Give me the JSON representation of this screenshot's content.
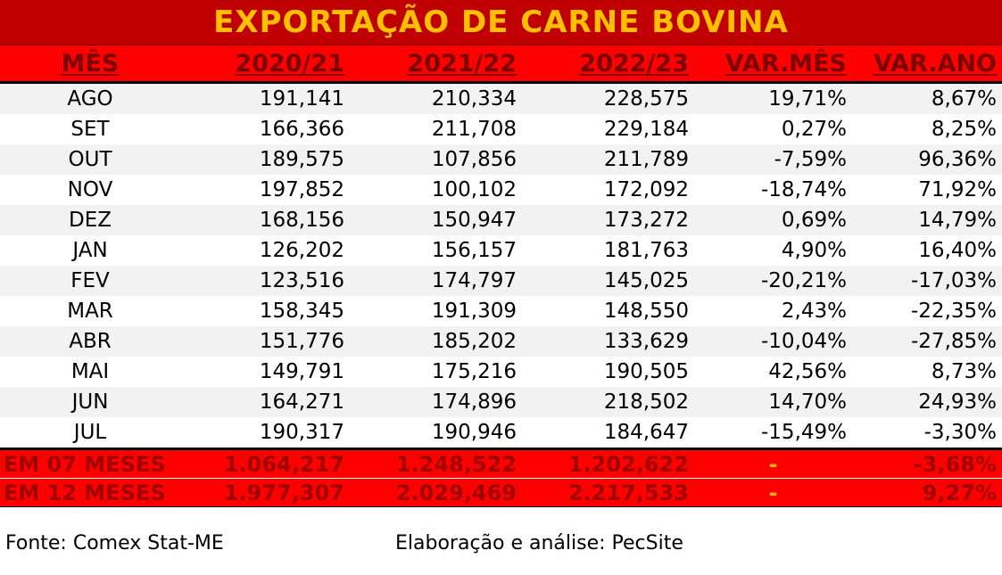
{
  "title": "EXPORTAÇÃO DE CARNE BOVINA",
  "columns": [
    "MÊS",
    "2020/21",
    "2021/22",
    "2022/23",
    "VAR.MÊS",
    "VAR.ANO"
  ],
  "rows": [
    {
      "mes": "AGO",
      "y2020": "191,141",
      "y2021": "210,334",
      "y2022": "228,575",
      "var_mes": "19,71%",
      "var_ano": "8,67%"
    },
    {
      "mes": "SET",
      "y2020": "166,366",
      "y2021": "211,708",
      "y2022": "229,184",
      "var_mes": "0,27%",
      "var_ano": "8,25%"
    },
    {
      "mes": "OUT",
      "y2020": "189,575",
      "y2021": "107,856",
      "y2022": "211,789",
      "var_mes": "-7,59%",
      "var_ano": "96,36%"
    },
    {
      "mes": "NOV",
      "y2020": "197,852",
      "y2021": "100,102",
      "y2022": "172,092",
      "var_mes": "-18,74%",
      "var_ano": "71,92%"
    },
    {
      "mes": "DEZ",
      "y2020": "168,156",
      "y2021": "150,947",
      "y2022": "173,272",
      "var_mes": "0,69%",
      "var_ano": "14,79%"
    },
    {
      "mes": "JAN",
      "y2020": "126,202",
      "y2021": "156,157",
      "y2022": "181,763",
      "var_mes": "4,90%",
      "var_ano": "16,40%"
    },
    {
      "mes": "FEV",
      "y2020": "123,516",
      "y2021": "174,797",
      "y2022": "145,025",
      "var_mes": "-20,21%",
      "var_ano": "-17,03%"
    },
    {
      "mes": "MAR",
      "y2020": "158,345",
      "y2021": "191,309",
      "y2022": "148,550",
      "var_mes": "2,43%",
      "var_ano": "-22,35%"
    },
    {
      "mes": "ABR",
      "y2020": "151,776",
      "y2021": "185,202",
      "y2022": "133,629",
      "var_mes": "-10,04%",
      "var_ano": "-27,85%"
    },
    {
      "mes": "MAI",
      "y2020": "149,791",
      "y2021": "175,216",
      "y2022": "190,505",
      "var_mes": "42,56%",
      "var_ano": "8,73%"
    },
    {
      "mes": "JUN",
      "y2020": "164,271",
      "y2021": "174,896",
      "y2022": "218,502",
      "var_mes": "14,70%",
      "var_ano": "24,93%"
    },
    {
      "mes": "JUL",
      "y2020": "190,317",
      "y2021": "190,946",
      "y2022": "184,647",
      "var_mes": "-15,49%",
      "var_ano": "-3,30%"
    }
  ],
  "totals": [
    {
      "label": "EM 07 MESES",
      "y2020": "1.064,217",
      "y2021": "1.248,522",
      "y2022": "1.202,622",
      "var_mes": "-",
      "var_ano": "-3,68%"
    },
    {
      "label": "EM 12 MESES",
      "y2020": "1.977,307",
      "y2021": "2.029,469",
      "y2022": "2.217,533",
      "var_mes": "-",
      "var_ano": "9,27%"
    }
  ],
  "footer": {
    "source": "Fonte: Comex Stat-ME",
    "elaboration": "Elaboração e análise: PecSite"
  },
  "colors": {
    "title_bg": "#c00000",
    "title_text": "#ffc000",
    "header_bg": "#ff0000",
    "header_text": "#7a0000",
    "total_bg": "#ff0000",
    "total_text": "#a00000",
    "zebra": "#f2f2f2"
  }
}
